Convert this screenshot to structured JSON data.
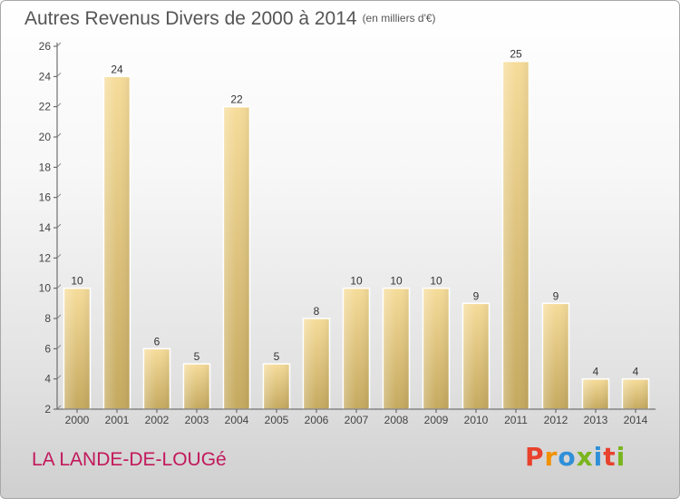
{
  "header": {
    "title": "Autres Revenus Divers de 2000 à 2014",
    "subtitle": "(en milliers d'€)"
  },
  "footer": {
    "commune": "LA LANDE-DE-LOUGé",
    "logo": {
      "letters": [
        "P",
        "r",
        "o",
        "x",
        "i",
        "t",
        "i"
      ],
      "colors": [
        "#e8412c",
        "#f29100",
        "#2f8fd8",
        "#7ab51d",
        "#2f8fd8",
        "#e8412c",
        "#7ab51d"
      ]
    }
  },
  "colors": {
    "bar_top": "#f6dc9a",
    "bar_bottom": "#c4a95f",
    "axis": "#555555"
  },
  "chart_data": {
    "type": "bar",
    "title": "Autres Revenus Divers de 2000 à 2014",
    "subtitle": "(en milliers d'€)",
    "categories": [
      "2000",
      "2001",
      "2002",
      "2003",
      "2004",
      "2005",
      "2006",
      "2007",
      "2008",
      "2009",
      "2010",
      "2011",
      "2012",
      "2013",
      "2014"
    ],
    "values": [
      10,
      24,
      6,
      5,
      22,
      5,
      8,
      10,
      10,
      10,
      9,
      25,
      9,
      4,
      4
    ],
    "ylim": [
      2,
      26
    ],
    "yticks": [
      2,
      4,
      6,
      8,
      10,
      12,
      14,
      16,
      18,
      20,
      22,
      24,
      26
    ],
    "grid": false,
    "xlabel": "",
    "ylabel": ""
  }
}
